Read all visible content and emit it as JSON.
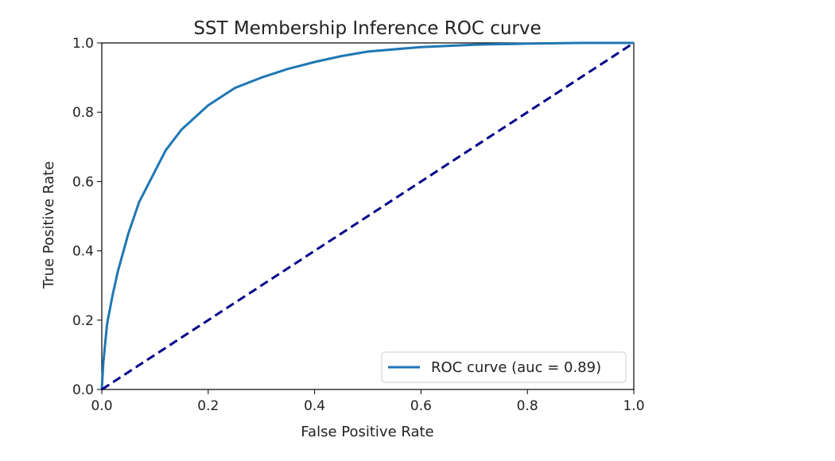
{
  "chart_data": {
    "type": "line",
    "title": "SST Membership Inference ROC curve",
    "xlabel": "False Positive Rate",
    "ylabel": "True Positive Rate",
    "xlim": [
      0.0,
      1.0
    ],
    "ylim": [
      0.0,
      1.0
    ],
    "xticks": [
      "0.0",
      "0.2",
      "0.4",
      "0.6",
      "0.8",
      "1.0"
    ],
    "yticks": [
      "0.0",
      "0.2",
      "0.4",
      "0.6",
      "0.8",
      "1.0"
    ],
    "grid": false,
    "legend_position": "lower right",
    "series": [
      {
        "name": "ROC curve (auc = 0.89)",
        "color": "#1f77b4",
        "style": "solid",
        "x": [
          0.0,
          0.003,
          0.01,
          0.02,
          0.03,
          0.05,
          0.07,
          0.1,
          0.12,
          0.15,
          0.2,
          0.25,
          0.3,
          0.35,
          0.4,
          0.45,
          0.5,
          0.6,
          0.7,
          0.8,
          0.9,
          1.0
        ],
        "y": [
          0.0,
          0.08,
          0.19,
          0.27,
          0.34,
          0.45,
          0.54,
          0.63,
          0.69,
          0.75,
          0.82,
          0.87,
          0.9,
          0.925,
          0.945,
          0.962,
          0.975,
          0.988,
          0.995,
          0.998,
          1.0,
          1.0
        ]
      },
      {
        "name": "",
        "color": "#00008b",
        "style": "dashed",
        "x": [
          0.0,
          1.0
        ],
        "y": [
          0.0,
          1.0
        ]
      }
    ],
    "legend": [
      {
        "label": "ROC curve (auc = 0.89)",
        "color": "#1f77b4"
      }
    ]
  }
}
